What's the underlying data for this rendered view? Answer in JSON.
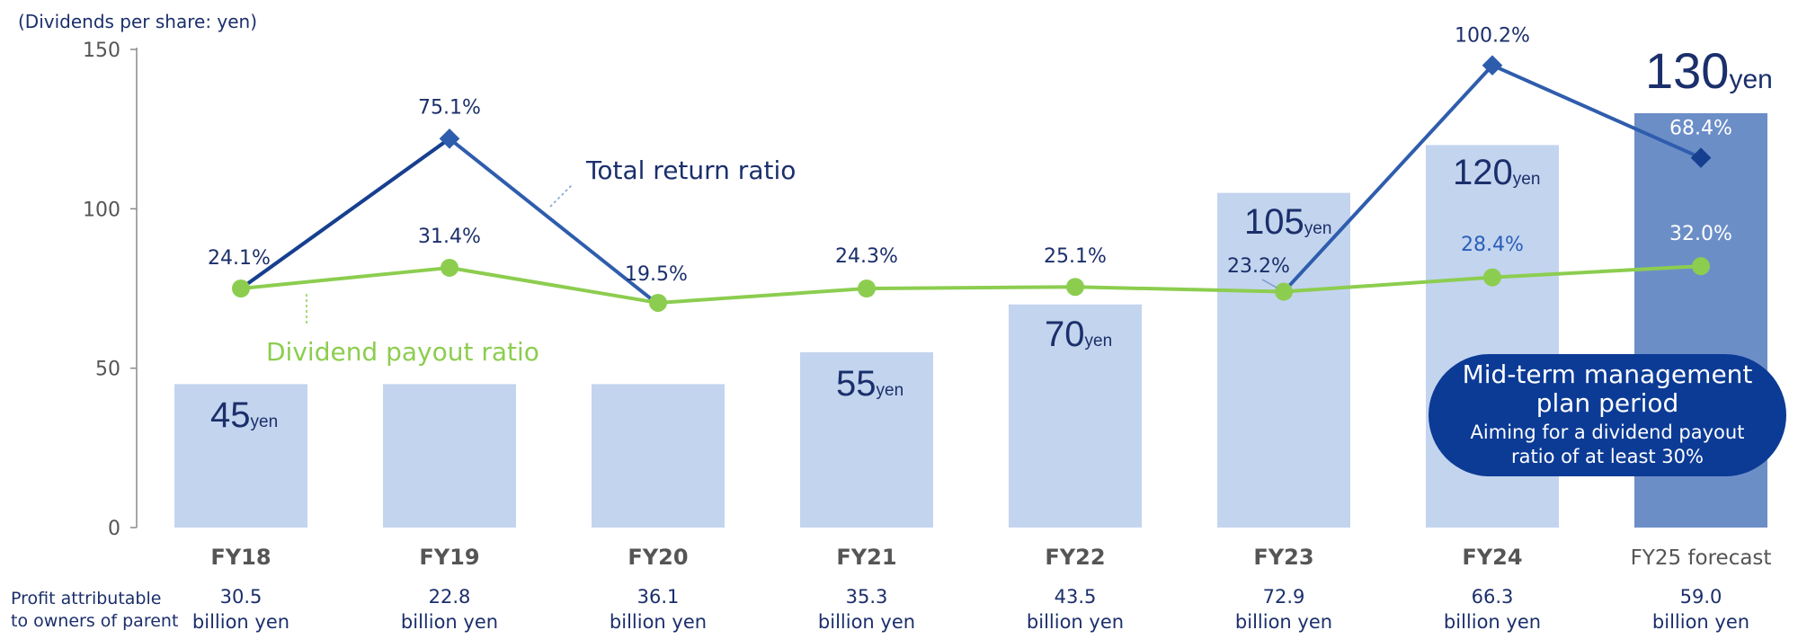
{
  "chart_data": {
    "type": "bar",
    "unit_label": "(Dividends per share: yen)",
    "ylim": [
      0,
      150
    ],
    "yticks": [
      0,
      50,
      100,
      150
    ],
    "categories": [
      "FY18",
      "FY19",
      "FY20",
      "FY21",
      "FY22",
      "FY23",
      "FY24",
      "FY25 forecast"
    ],
    "dividends": [
      45,
      45,
      45,
      55,
      70,
      105,
      120,
      130
    ],
    "dividend_labels": [
      {
        "value": "45",
        "unit": "yen"
      },
      null,
      null,
      {
        "value": "55",
        "unit": "yen"
      },
      {
        "value": "70",
        "unit": "yen"
      },
      {
        "value": "105",
        "unit": "yen"
      },
      {
        "value": "120",
        "unit": "yen"
      },
      {
        "value": "130",
        "unit": "yen"
      }
    ],
    "series": [
      {
        "name": "Total return ratio",
        "points": [
          {
            "category": "FY18",
            "value": 75,
            "label": null
          },
          {
            "category": "FY19",
            "value": 122,
            "label": "75.1%"
          },
          {
            "category": "FY20",
            "value": 70,
            "label": null
          },
          {
            "category": "FY23",
            "value": 74,
            "label": null
          },
          {
            "category": "FY24",
            "value": 145,
            "label": "100.2%"
          },
          {
            "category": "FY25 forecast",
            "value": 116,
            "label": "68.4%"
          }
        ]
      },
      {
        "name": "Dividend payout ratio",
        "values": [
          75,
          81.5,
          70.5,
          75,
          75.5,
          74,
          78.5,
          82
        ],
        "labels": [
          "24.1%",
          "31.4%",
          "19.5%",
          "24.3%",
          "25.1%",
          "23.2%",
          "28.4%",
          "32.0%"
        ]
      }
    ],
    "profit": {
      "row_label_line1": "Profit attributable",
      "row_label_line2": "to owners of parent",
      "values": [
        "30.5",
        "22.8",
        "36.1",
        "35.3",
        "43.5",
        "72.9",
        "66.3",
        "59.0"
      ],
      "unit": "billion yen"
    },
    "plan_box": {
      "title_line1": "Mid-term management",
      "title_line2": "plan period",
      "sub_line1": "Aiming for a dividend payout",
      "sub_line2": "ratio of at least 30%"
    },
    "colors": {
      "bar": "#c3d4ee",
      "bar_forecast": "#6c8ec7",
      "return_line": "#2f5dad",
      "return_line_dark": "#173f8f",
      "payout_line": "#8ccd4f",
      "text_dark": "#1b2f6b",
      "text_axis": "#555555",
      "plan_box": "#0c3b96",
      "label_blue": "#2a5fb8"
    }
  }
}
